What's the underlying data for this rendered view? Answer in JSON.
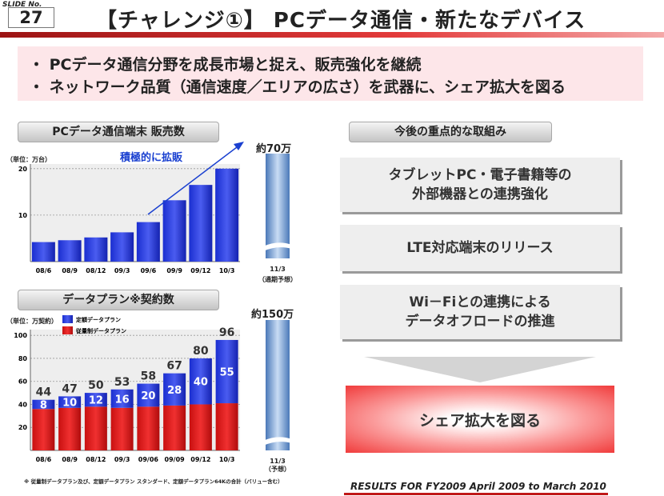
{
  "slide": {
    "label": "SLIDE No.",
    "number": "27"
  },
  "title": "【チャレンジ①】 PCデータ通信・新たなデバイス",
  "colors": {
    "accent_red": "#d42020",
    "bar_blue": "#1a2ed0",
    "bar_red": "#dd1a1a",
    "pink_bg": "#fde6e9"
  },
  "summary": [
    "・ PCデータ通信分野を成長市場と捉え、販売強化を継続",
    "・ ネットワーク品質（通信速度／エリアの広さ）を武器に、シェア拡大を図る"
  ],
  "chart1_panel": {
    "title": "PCデータ通信端末 販売数",
    "unit": "（単位：万台）",
    "annotation": "積極的に拡販",
    "projection_label": "約70万",
    "projection_cat": "11/3",
    "projection_note": "（通期予想）"
  },
  "chart2_panel": {
    "title": "データプラン※契約数",
    "unit": "（単位：万契約）",
    "projection_label": "約150万",
    "projection_cat": "11/3",
    "projection_note": "（予想）",
    "legend_flat": "定額データプラン",
    "legend_metered": "従量制データプラン"
  },
  "initiatives": {
    "title": "今後の重点的な取組み",
    "items": [
      "タブレットPC・電子書籍等の\n外部機器との連携強化",
      "LTE対応端末のリリース",
      "Wi－Fiとの連携による\nデータオフロードの推進"
    ],
    "result": "シェア拡大を図る"
  },
  "footnote": "※ 従量制データプラン及び、定額データプラン スタンダード、定額データプラン64Kの合計（バリュー含む）",
  "results_caption": "RESULTS FOR FY2009  April 2009 to March 2010",
  "chart_data": [
    {
      "type": "bar",
      "categories": [
        "08/6",
        "08/9",
        "08/12",
        "09/3",
        "09/6",
        "09/9",
        "09/12",
        "10/3"
      ],
      "values": [
        4.2,
        4.6,
        5.2,
        6.3,
        8.5,
        13.2,
        16.5,
        20.0
      ],
      "yticks": [
        10,
        20
      ],
      "ylim": [
        0,
        21
      ],
      "ylabel": "（単位：万台）"
    },
    {
      "type": "bar",
      "stacked": true,
      "categories": [
        "08/6",
        "08/9",
        "08/12",
        "09/3",
        "09/06",
        "09/09",
        "09/12",
        "10/3"
      ],
      "totals": [
        44,
        47,
        50,
        53,
        58,
        67,
        80,
        96
      ],
      "series": [
        {
          "name": "従量制データプラン",
          "values": [
            36,
            37,
            38,
            37,
            38,
            39,
            40,
            41
          ]
        },
        {
          "name": "定額データプラン",
          "values": [
            8,
            10,
            12,
            16,
            20,
            28,
            40,
            55
          ]
        }
      ],
      "yticks": [
        20,
        40,
        60,
        80,
        100
      ],
      "ylim": [
        0,
        105
      ],
      "ylabel": "（単位：万契約）"
    }
  ]
}
